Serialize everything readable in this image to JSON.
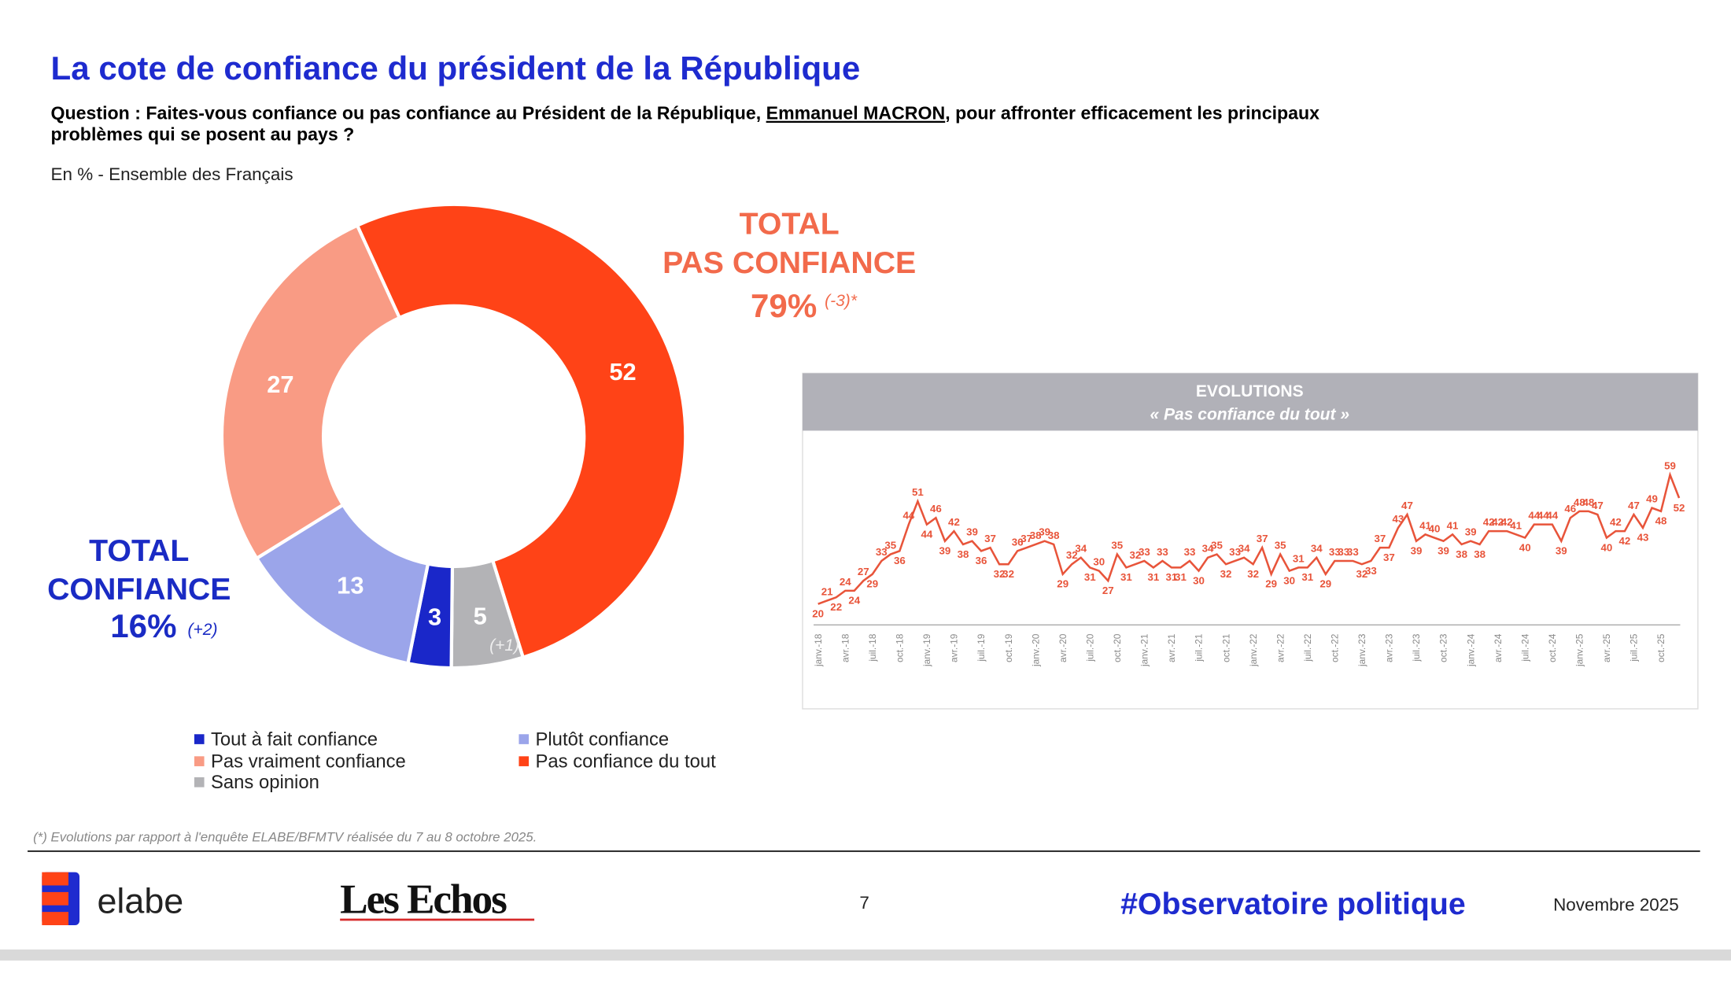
{
  "header": {
    "title": "La cote de confiance du président de la République",
    "question_start": "Question : Faites-vous confiance ou pas confiance au Président de la République, ",
    "question_name": "Emmanuel MACRON",
    "question_end": ", pour affronter efficacement les principaux",
    "question_line2": "problèmes qui se posent au pays ?",
    "base": "En % - Ensemble des Français"
  },
  "chart_data": [
    {
      "type": "pie",
      "categories": [
        "Tout à fait confiance",
        "Plutôt confiance",
        "Pas vraiment confiance",
        "Pas confiance du tout",
        "Sans opinion"
      ],
      "values": [
        3,
        13,
        27,
        52,
        5
      ],
      "colors": [
        "#1a27c9",
        "#9ba5ea",
        "#f99b84",
        "#ff4317",
        "#b3b3b6"
      ],
      "slice_note": "(+1)",
      "total_no": {
        "lines": [
          "TOTAL",
          "PAS CONFIANCE"
        ],
        "value": "79%",
        "change": "(-3)*"
      },
      "total_yes": {
        "lines": [
          "TOTAL",
          "CONFIANCE"
        ],
        "value": "16%",
        "change": "(+2)"
      }
    },
    {
      "type": "line",
      "title": "EVOLUTIONS",
      "subtitle": "« Pas confiance du tout »",
      "color": "#e8543a",
      "categories": [
        "janv.-18",
        null,
        null,
        "avr.-18",
        null,
        null,
        "juil.-18",
        null,
        null,
        "oct.-18",
        null,
        null,
        "janv.-19",
        null,
        null,
        "avr.-19",
        null,
        null,
        "juil.-19",
        null,
        null,
        "oct.-19",
        null,
        null,
        "janv.-20",
        null,
        null,
        "avr.-20",
        null,
        null,
        "juil.-20",
        null,
        null,
        "oct.-20",
        null,
        null,
        "janv.-21",
        null,
        null,
        "avr.-21",
        null,
        null,
        "juil.-21",
        null,
        null,
        "oct.-21",
        null,
        null,
        "janv.-22",
        null,
        null,
        "avr.-22",
        null,
        null,
        "juil.-22",
        null,
        null,
        "oct.-22",
        null,
        null,
        "janv.-23",
        null,
        null,
        "avr.-23",
        null,
        null,
        "juil.-23",
        null,
        null,
        "oct.-23",
        null,
        null,
        "janv.-24",
        null,
        null,
        "avr.-24",
        null,
        null,
        "juil.-24",
        null,
        null,
        "oct.-24",
        null,
        null,
        "janv.-25",
        null,
        null,
        "avr.-25",
        null,
        null,
        "juil.-25",
        null,
        null,
        "oct.-25",
        null,
        null
      ],
      "values": [
        20,
        21,
        22,
        24,
        24,
        27,
        29,
        33,
        35,
        36,
        44,
        51,
        44,
        46,
        39,
        42,
        38,
        39,
        36,
        37,
        32,
        32,
        36,
        37,
        38,
        39,
        38,
        29,
        32,
        34,
        31,
        30,
        27,
        35,
        31,
        32,
        33,
        31,
        33,
        31,
        31,
        33,
        30,
        34,
        35,
        32,
        33,
        34,
        32,
        37,
        29,
        35,
        30,
        31,
        31,
        34,
        29,
        33,
        33,
        33,
        32,
        33,
        37,
        37,
        43,
        47,
        39,
        41,
        40,
        39,
        41,
        38,
        39,
        38,
        42,
        42,
        42,
        41,
        40,
        44,
        44,
        44,
        39,
        46,
        48,
        48,
        47,
        40,
        42,
        42,
        47,
        43,
        49,
        48,
        59,
        52
      ]
    }
  ],
  "footer": {
    "footnote": "(*) Evolutions par rapport à l'enquête ELABE/BFMTV réalisée du 7 au 8 octobre 2025.",
    "brand": "elabe",
    "partner": "Les Echos",
    "page": 7,
    "hashtag": "#Observatoire politique",
    "date": "Novembre 2025"
  }
}
